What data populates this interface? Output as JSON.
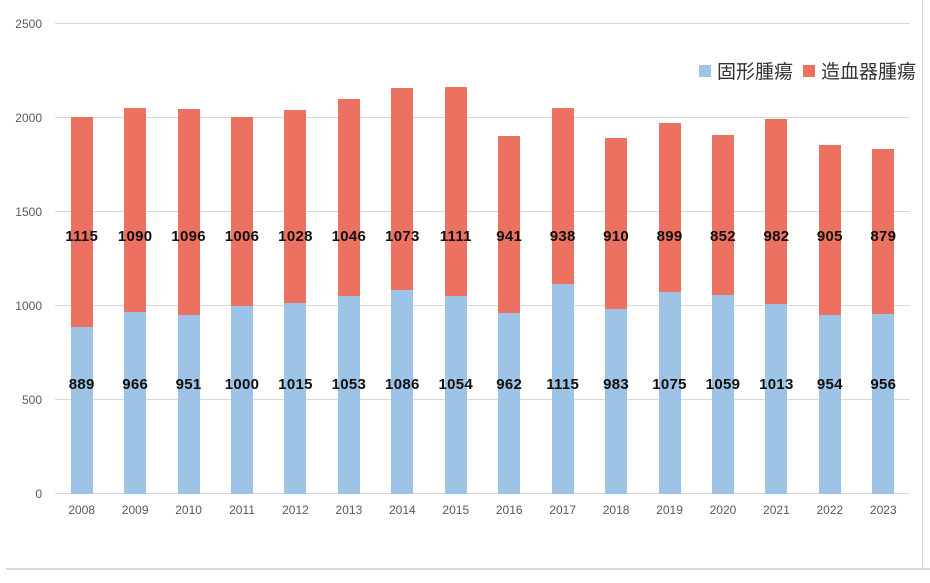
{
  "chart_data": {
    "type": "bar",
    "stacked": true,
    "title": "",
    "categories": [
      "2008",
      "2009",
      "2010",
      "2011",
      "2012",
      "2013",
      "2014",
      "2015",
      "2016",
      "2017",
      "2018",
      "2019",
      "2020",
      "2021",
      "2022",
      "2023"
    ],
    "series": [
      {
        "name": "固形腫瘍",
        "color": "#9DC3E6",
        "values": [
          889,
          966,
          951,
          1000,
          1015,
          1053,
          1086,
          1054,
          962,
          1115,
          983,
          1075,
          1059,
          1013,
          954,
          956
        ]
      },
      {
        "name": "造血器腫瘍",
        "color": "#ED7161",
        "values": [
          1115,
          1090,
          1096,
          1006,
          1028,
          1046,
          1073,
          1111,
          941,
          938,
          910,
          899,
          852,
          982,
          905,
          879
        ]
      }
    ],
    "xlabel": "",
    "ylabel": "",
    "ylim": [
      0,
      2500
    ],
    "yticks": [
      0,
      500,
      1000,
      1500,
      2000,
      2500
    ],
    "grid": true,
    "data_labels": true,
    "legend_position": "top-right"
  },
  "colors": {
    "background": "#FFFFFF",
    "gridline": "#D9D9D9",
    "axis_text": "#595959",
    "data_label_text": "#111111",
    "frame_border": "#D9D9D9"
  }
}
